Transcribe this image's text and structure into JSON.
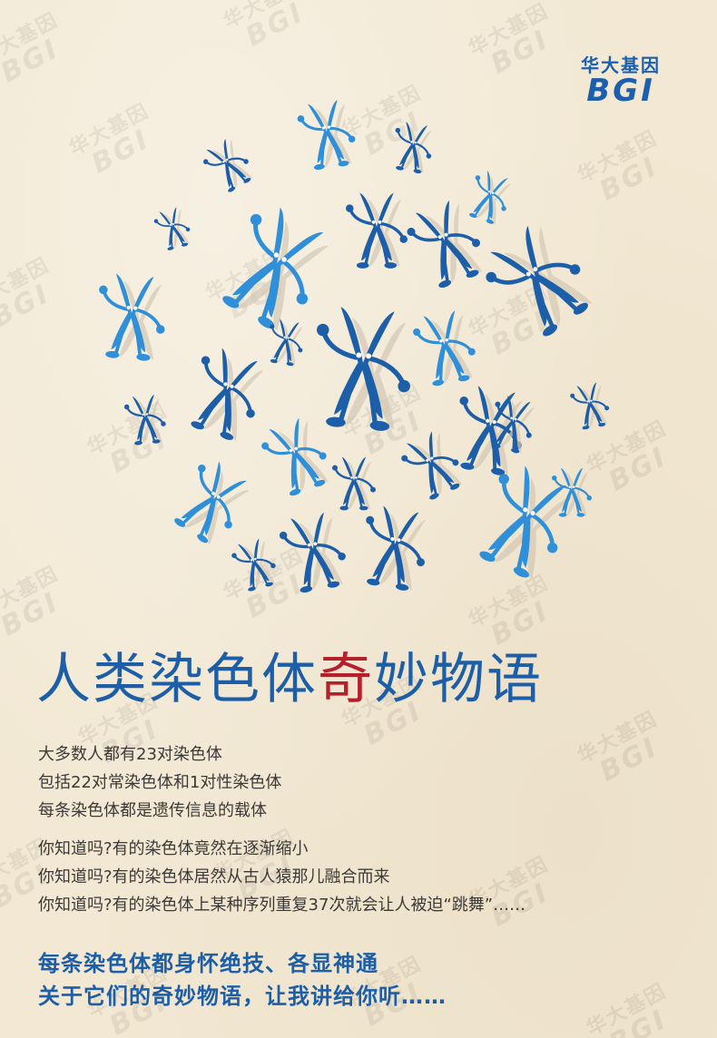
{
  "logo": {
    "cn": "华大基因",
    "en": "BGI"
  },
  "watermark": {
    "cn": "华大基因",
    "en": "BGI"
  },
  "colors": {
    "primary_blue": "#1d5ea8",
    "light_blue": "#2f8fd8",
    "accent_red": "#b5202b",
    "paper": "#f2e8d3"
  },
  "title": {
    "before": "人类染色体",
    "accent": "奇",
    "after": "妙物语"
  },
  "paragraph1": [
    "大多数人都有23对染色体",
    "包括22对常染色体和1对性染色体",
    "每条染色体都是遗传信息的载体"
  ],
  "paragraph2": [
    "你知道吗?有的染色体竟然在逐渐缩小",
    "你知道吗?有的染色体居然从古人猿那儿融合而来",
    "你知道吗?有的染色体上某种序列重复37次就会让人被迫“跳舞”……"
  ],
  "tagline": [
    "每条染色体都身怀绝技、各显神通",
    "关于它们的奇妙物语，让我讲给你听……"
  ],
  "illustration": {
    "icon": "chromosome-character-icon",
    "count": 27
  }
}
